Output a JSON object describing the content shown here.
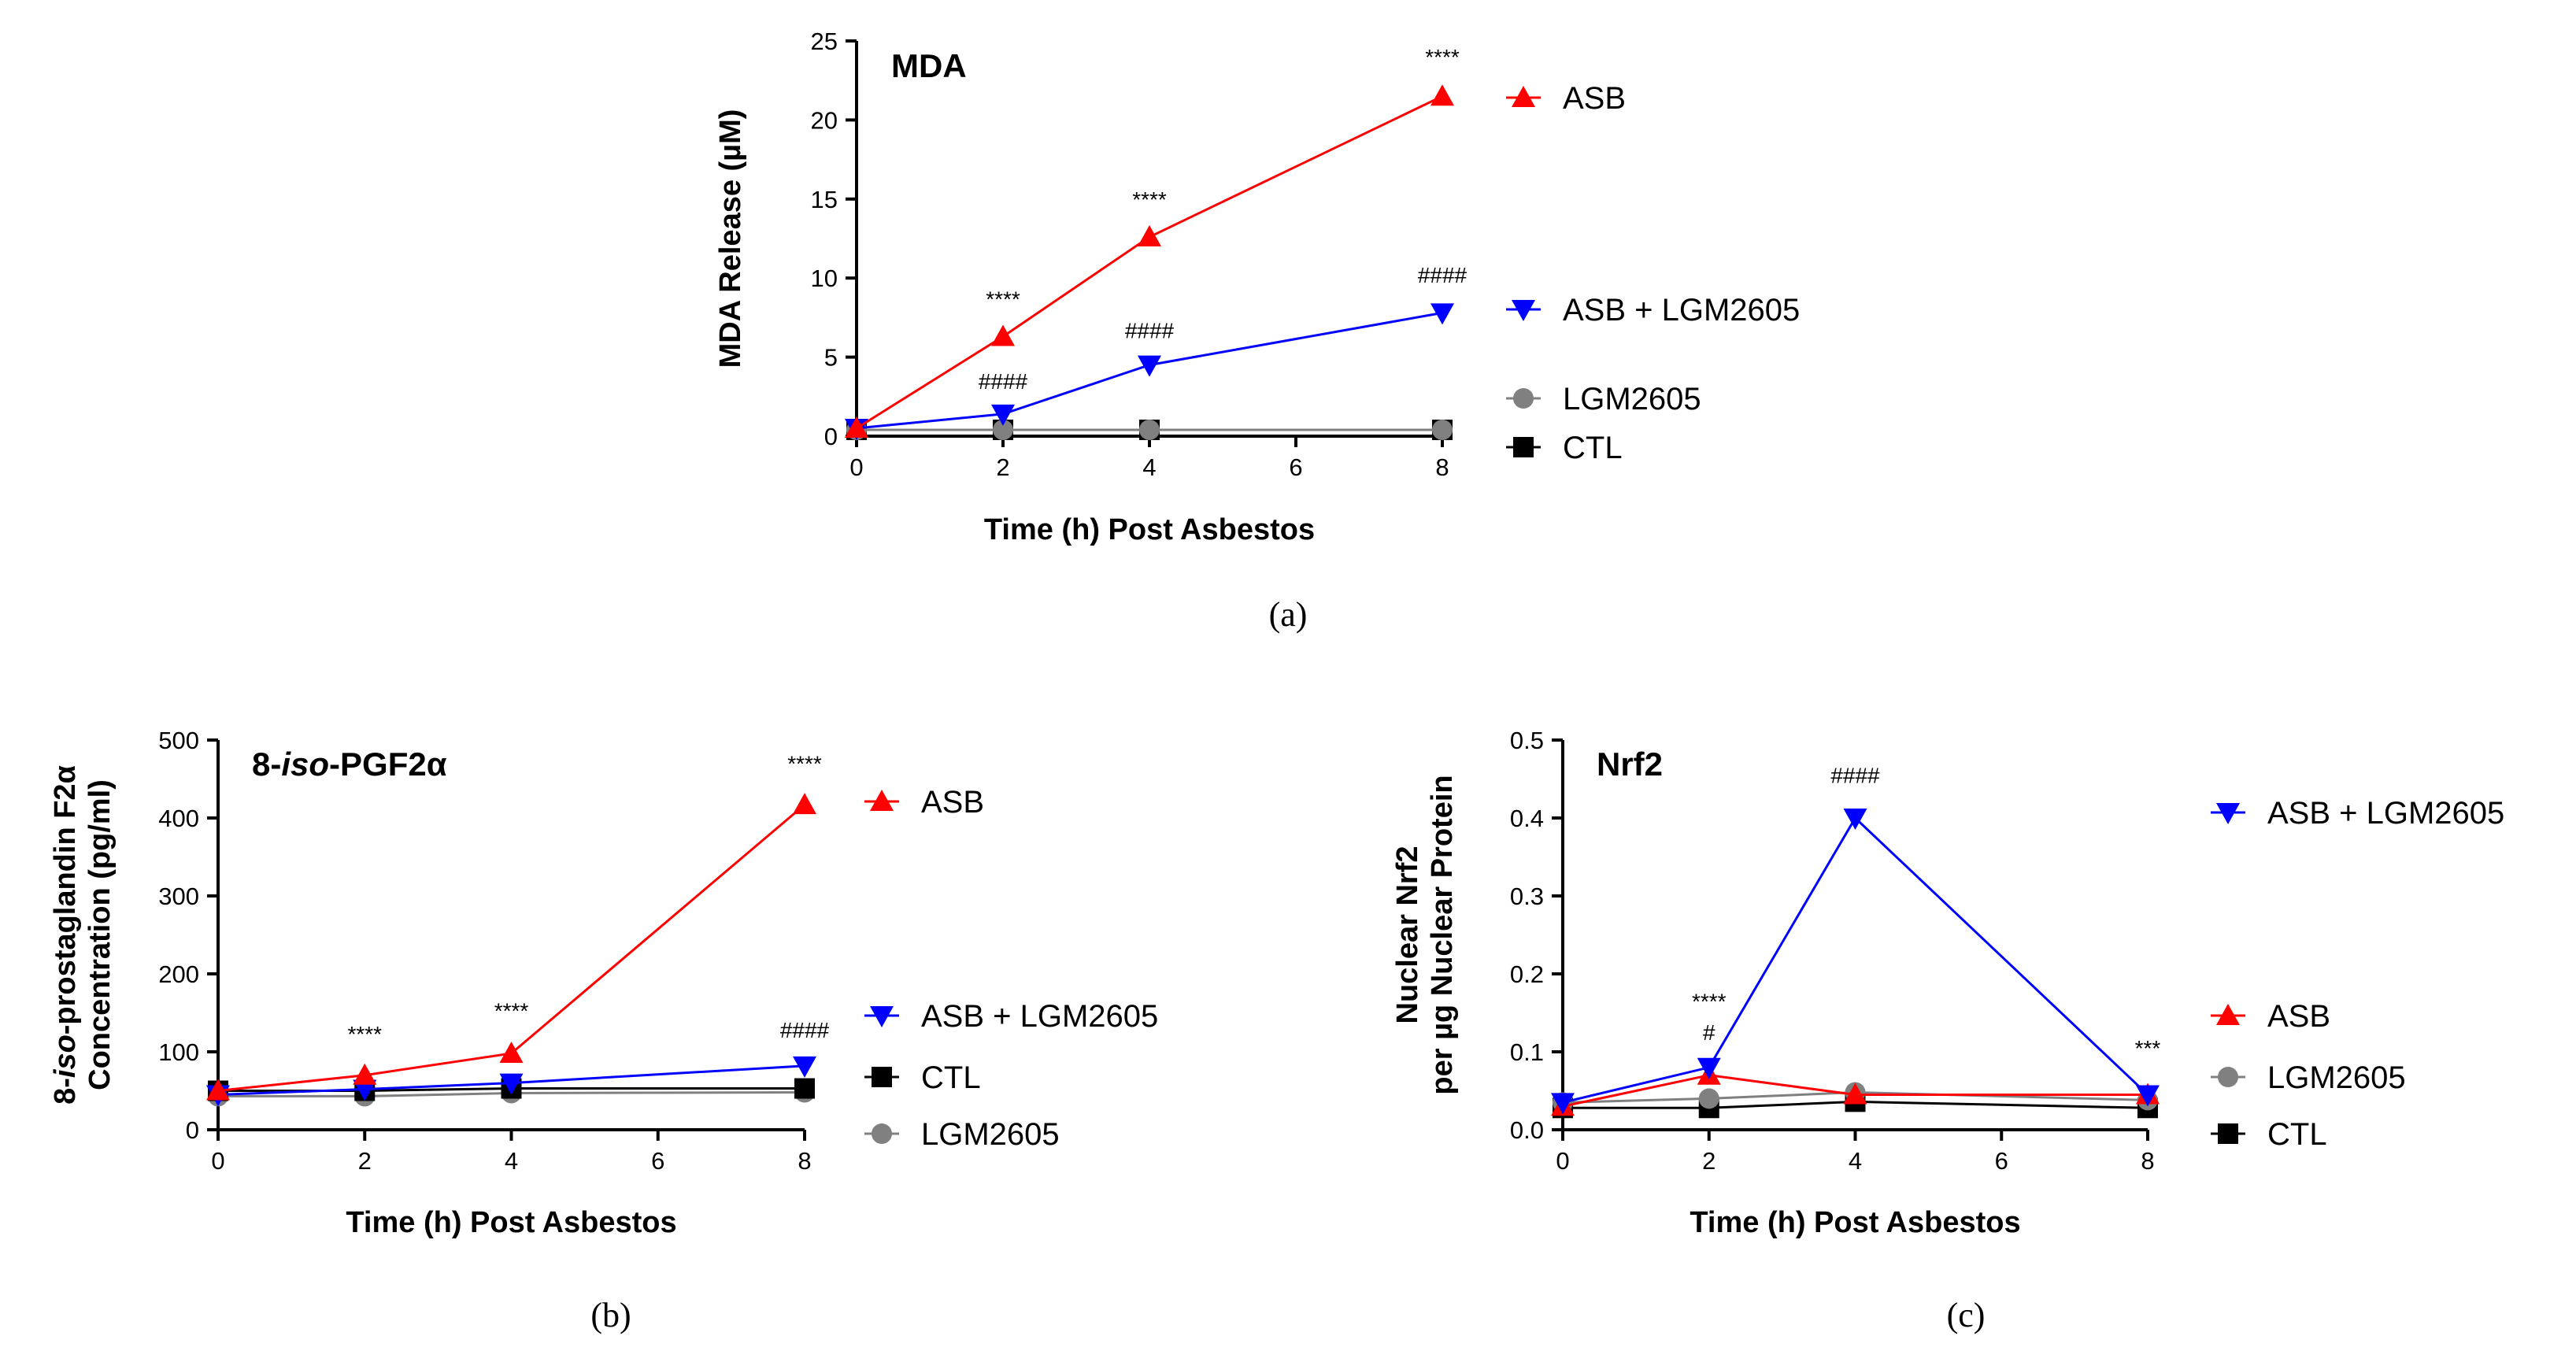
{
  "chart_data": [
    {
      "panel": "(a)",
      "type": "line",
      "title": "MDA",
      "xlabel": "Time (h) Post Asbestos",
      "ylabel": "MDA Release (µM)",
      "xlim": [
        0,
        8
      ],
      "ylim": [
        0,
        25
      ],
      "xticks": [
        "0",
        "2",
        "4",
        "6",
        "8"
      ],
      "yticks": [
        "0",
        "5",
        "10",
        "15",
        "20",
        "25"
      ],
      "x": [
        0,
        2,
        4,
        8
      ],
      "series": [
        {
          "name": "ASB",
          "color": "#ff0000",
          "marker": "triangle-up",
          "values": [
            0.5,
            6.3,
            12.6,
            21.5
          ]
        },
        {
          "name": "ASB + LGM2605",
          "color": "#0000ff",
          "marker": "triangle-down",
          "values": [
            0.5,
            1.4,
            4.5,
            7.8
          ]
        },
        {
          "name": "LGM2605",
          "color": "#808080",
          "marker": "circle",
          "values": [
            0.4,
            0.4,
            0.4,
            0.4
          ]
        },
        {
          "name": "CTL",
          "color": "#000000",
          "marker": "square",
          "values": [
            0.4,
            0.4,
            0.4,
            0.4
          ]
        }
      ],
      "annotations": [
        {
          "text": "****",
          "x": 2,
          "y": 8.2
        },
        {
          "text": "****",
          "x": 4,
          "y": 14.5
        },
        {
          "text": "****",
          "x": 8,
          "y": 23.5
        },
        {
          "text": "####",
          "x": 2,
          "y": 3.0
        },
        {
          "text": "####",
          "x": 4,
          "y": 6.2
        },
        {
          "text": "####",
          "x": 8,
          "y": 9.7
        }
      ]
    },
    {
      "panel": "(b)",
      "type": "line",
      "title": "8-iso-PGF2α",
      "xlabel": "Time (h) Post Asbestos",
      "ylabel": "8-iso-prostaglandin F2α Concentration (pg/ml)",
      "xlim": [
        0,
        8
      ],
      "ylim": [
        0,
        500
      ],
      "xticks": [
        "0",
        "2",
        "4",
        "6",
        "8"
      ],
      "yticks": [
        "0",
        "100",
        "200",
        "300",
        "400",
        "500"
      ],
      "x": [
        0,
        2,
        4,
        8
      ],
      "series": [
        {
          "name": "ASB",
          "color": "#ff0000",
          "marker": "triangle-up",
          "values": [
            50,
            70,
            98,
            417
          ]
        },
        {
          "name": "ASB + LGM2605",
          "color": "#0000ff",
          "marker": "triangle-down",
          "values": [
            45,
            52,
            60,
            82
          ]
        },
        {
          "name": "CTL",
          "color": "#000000",
          "marker": "square",
          "values": [
            50,
            50,
            53,
            53
          ]
        },
        {
          "name": "LGM2605",
          "color": "#808080",
          "marker": "circle",
          "values": [
            43,
            43,
            47,
            48
          ]
        }
      ],
      "annotations": [
        {
          "text": "****",
          "x": 2,
          "y": 113
        },
        {
          "text": "****",
          "x": 4,
          "y": 143
        },
        {
          "text": "****",
          "x": 8,
          "y": 460
        },
        {
          "text": "####",
          "x": 8,
          "y": 118
        }
      ]
    },
    {
      "panel": "(c)",
      "type": "line",
      "title": "Nrf2",
      "xlabel": "Time (h) Post Asbestos",
      "ylabel": "Nuclear Nrf2 per µg Nuclear Protein",
      "xlim": [
        0,
        8
      ],
      "ylim": [
        0,
        0.5
      ],
      "xticks": [
        "0",
        "2",
        "4",
        "6",
        "8"
      ],
      "yticks": [
        "0.0",
        "0.1",
        "0.2",
        "0.3",
        "0.4",
        "0.5"
      ],
      "x": [
        0,
        2,
        4,
        8
      ],
      "series": [
        {
          "name": "ASB + LGM2605",
          "color": "#0000ff",
          "marker": "triangle-down",
          "values": [
            0.035,
            0.08,
            0.4,
            0.045
          ]
        },
        {
          "name": "ASB",
          "color": "#ff0000",
          "marker": "triangle-up",
          "values": [
            0.03,
            0.07,
            0.045,
            0.045
          ]
        },
        {
          "name": "LGM2605",
          "color": "#808080",
          "marker": "circle",
          "values": [
            0.035,
            0.04,
            0.048,
            0.038
          ]
        },
        {
          "name": "CTL",
          "color": "#000000",
          "marker": "square",
          "values": [
            0.028,
            0.028,
            0.036,
            0.028
          ]
        }
      ],
      "annotations": [
        {
          "text": "****",
          "x": 2,
          "y": 0.155
        },
        {
          "text": "#",
          "x": 2,
          "y": 0.115
        },
        {
          "text": "####",
          "x": 4,
          "y": 0.445
        },
        {
          "text": "***",
          "x": 8,
          "y": 0.095
        }
      ]
    }
  ]
}
